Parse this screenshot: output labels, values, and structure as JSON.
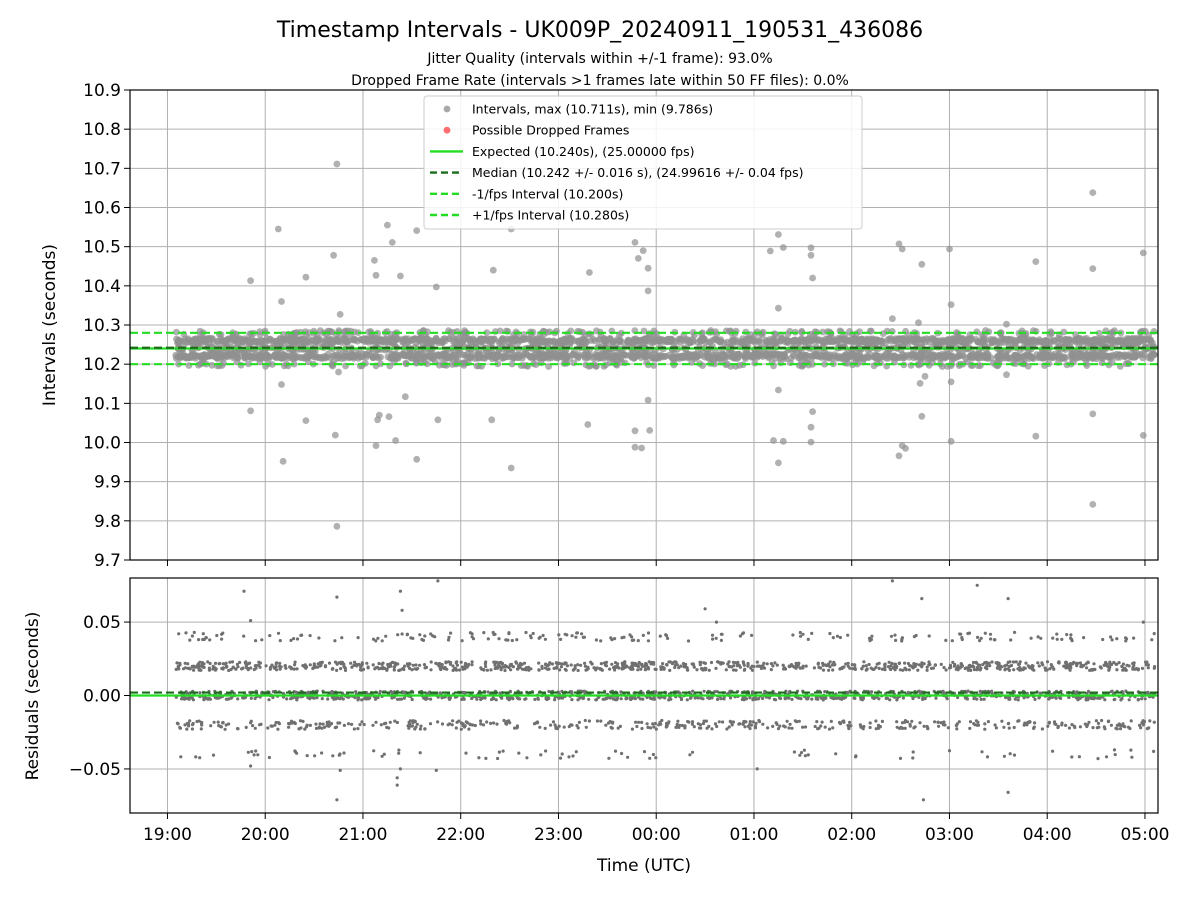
{
  "title": "Timestamp Intervals - UK009P_20240911_190531_436086",
  "subtitle_1": "Jitter Quality (intervals within +/-1 frame): 93.0%",
  "subtitle_2": "Dropped Frame Rate (intervals >1 frames late within 50 FF files): 0.0%",
  "chart_data": [
    {
      "type": "scatter",
      "panel": "intervals",
      "ylabel": "Intervals (seconds)",
      "xlabel": "",
      "ylim": [
        9.7,
        10.9
      ],
      "yticks": [
        "10.9",
        "10.8",
        "10.7",
        "10.6",
        "10.5",
        "10.4",
        "10.3",
        "10.2",
        "10.1",
        "10.0",
        "9.9",
        "9.8",
        "9.7"
      ],
      "grid": true,
      "legend_placement": "top-center",
      "legend": [
        {
          "label": "Intervals, max (10.711s), min (9.786s)",
          "marker": "dot",
          "color": "#a0a0a0"
        },
        {
          "label": "Possible Dropped Frames",
          "marker": "dot",
          "color": "#ff6666"
        },
        {
          "label": "Expected (10.240s), (25.00000 fps)",
          "marker": "solid",
          "color": "#22dd22"
        },
        {
          "label": "Median (10.242 +/- 0.016 s), (24.99616 +/- 0.04 fps)",
          "marker": "dashed",
          "color": "#1a6e1a"
        },
        {
          "label": "-1/fps Interval (10.200s)",
          "marker": "dashed",
          "color": "#22dd22"
        },
        {
          "label": "+1/fps Interval (10.280s)",
          "marker": "dashed",
          "color": "#22dd22"
        }
      ],
      "reference_lines": [
        {
          "name": "expected",
          "y": 10.24,
          "style": "solid",
          "color": "#22dd22"
        },
        {
          "name": "median",
          "y": 10.242,
          "style": "dashed",
          "color": "#1a6e1a"
        },
        {
          "name": "minus_one_frame",
          "y": 10.2,
          "style": "dashed",
          "color": "#22dd22"
        },
        {
          "name": "plus_one_frame",
          "y": 10.28,
          "style": "dashed",
          "color": "#22dd22"
        }
      ],
      "series": [
        {
          "name": "Intervals",
          "color": "#909090",
          "note": "dense band of points between 10.20 and 10.28 from 19:05 to 05:06, plus outliers listed below",
          "outliers": [
            [
              "19:51",
              10.413
            ],
            [
              "19:51",
              10.081
            ],
            [
              "20:08",
              10.545
            ],
            [
              "20:10",
              10.36
            ],
            [
              "20:10",
              10.148
            ],
            [
              "20:11",
              9.952
            ],
            [
              "20:25",
              10.422
            ],
            [
              "20:25",
              10.056
            ],
            [
              "20:42",
              10.478
            ],
            [
              "20:43",
              10.019
            ],
            [
              "20:44",
              10.711
            ],
            [
              "20:44",
              9.786
            ],
            [
              "20:46",
              10.327
            ],
            [
              "20:45",
              10.18
            ],
            [
              "21:07",
              10.465
            ],
            [
              "21:08",
              10.427
            ],
            [
              "21:09",
              10.058
            ],
            [
              "21:10",
              10.07
            ],
            [
              "21:08",
              9.992
            ],
            [
              "21:15",
              10.555
            ],
            [
              "21:18",
              10.511
            ],
            [
              "21:16",
              10.066
            ],
            [
              "21:20",
              10.005
            ],
            [
              "21:23",
              10.425
            ],
            [
              "21:26",
              10.117
            ],
            [
              "21:33",
              10.541
            ],
            [
              "21:33",
              9.957
            ],
            [
              "21:45",
              10.397
            ],
            [
              "21:46",
              10.058
            ],
            [
              "22:20",
              10.44
            ],
            [
              "22:19",
              10.058
            ],
            [
              "22:31",
              10.545
            ],
            [
              "22:31",
              9.935
            ],
            [
              "23:19",
              10.434
            ],
            [
              "23:18",
              10.046
            ],
            [
              "23:47",
              10.511
            ],
            [
              "23:49",
              10.47
            ],
            [
              "23:52",
              10.49
            ],
            [
              "23:55",
              10.445
            ],
            [
              "23:55",
              10.387
            ],
            [
              "23:55",
              10.108
            ],
            [
              "23:56",
              10.031
            ],
            [
              "23:47",
              10.03
            ],
            [
              "23:47",
              9.988
            ],
            [
              "23:51",
              9.986
            ],
            [
              "01:10",
              10.489
            ],
            [
              "01:15",
              10.531
            ],
            [
              "01:18",
              10.498
            ],
            [
              "01:12",
              10.005
            ],
            [
              "01:15",
              10.343
            ],
            [
              "01:15",
              10.134
            ],
            [
              "01:15",
              9.948
            ],
            [
              "01:18",
              10.003
            ],
            [
              "01:35",
              10.497
            ],
            [
              "01:35",
              10.478
            ],
            [
              "01:36",
              10.42
            ],
            [
              "01:36",
              10.079
            ],
            [
              "01:35",
              10.039
            ],
            [
              "01:35",
              10.001
            ],
            [
              "02:25",
              10.316
            ],
            [
              "02:29",
              10.507
            ],
            [
              "02:31",
              10.494
            ],
            [
              "02:29",
              9.966
            ],
            [
              "02:31",
              9.992
            ],
            [
              "02:33",
              9.985
            ],
            [
              "02:43",
              10.455
            ],
            [
              "02:41",
              10.306
            ],
            [
              "02:42",
              10.151
            ],
            [
              "02:45",
              10.169
            ],
            [
              "02:43",
              10.067
            ],
            [
              "03:00",
              10.494
            ],
            [
              "03:01",
              10.352
            ],
            [
              "03:01",
              10.155
            ],
            [
              "03:01",
              10.003
            ],
            [
              "03:35",
              10.302
            ],
            [
              "03:35",
              10.173
            ],
            [
              "03:53",
              10.462
            ],
            [
              "03:53",
              10.016
            ],
            [
              "04:28",
              10.638
            ],
            [
              "04:28",
              10.444
            ],
            [
              "04:28",
              10.073
            ],
            [
              "04:28",
              9.842
            ],
            [
              "04:59",
              10.484
            ],
            [
              "04:59",
              10.018
            ]
          ]
        }
      ]
    },
    {
      "type": "scatter",
      "panel": "residuals",
      "ylabel": "Residuals (seconds)",
      "xlabel": "Time (UTC)",
      "ylim": [
        -0.08,
        0.08
      ],
      "yticks": [
        "0.05",
        "0.00",
        "−0.05"
      ],
      "x_range": [
        "18:37",
        "05:08"
      ],
      "xticks": [
        "19:00",
        "20:00",
        "21:00",
        "22:00",
        "23:00",
        "00:00",
        "01:00",
        "02:00",
        "03:00",
        "04:00",
        "05:00"
      ],
      "grid": true,
      "reference_lines": [
        {
          "name": "zero",
          "y": 0.0,
          "style": "solid",
          "color": "#22dd22"
        },
        {
          "name": "median_offset",
          "y": 0.002,
          "style": "dashed",
          "color": "#1a6e1a"
        }
      ],
      "series": [
        {
          "name": "Residuals",
          "color": "#707070",
          "note": "points clustered in bands near -0.02, 0.00, +0.02 and +0.04 seconds, with sparse outliers",
          "outliers": [
            [
              "19:47",
              0.071
            ],
            [
              "19:51",
              0.051
            ],
            [
              "19:51",
              -0.048
            ],
            [
              "20:44",
              0.067
            ],
            [
              "20:46",
              -0.051
            ],
            [
              "20:44",
              -0.071
            ],
            [
              "21:23",
              0.071
            ],
            [
              "21:24",
              0.058
            ],
            [
              "21:23",
              -0.05
            ],
            [
              "21:21",
              -0.056
            ],
            [
              "21:21",
              -0.061
            ],
            [
              "21:46",
              0.078
            ],
            [
              "21:45",
              -0.051
            ],
            [
              "01:02",
              -0.05
            ],
            [
              "00:30",
              0.059
            ],
            [
              "00:37",
              0.05
            ],
            [
              "02:25",
              0.078
            ],
            [
              "02:43",
              0.066
            ],
            [
              "02:44",
              -0.071
            ],
            [
              "03:17",
              0.075
            ],
            [
              "03:36",
              0.066
            ],
            [
              "03:36",
              -0.066
            ],
            [
              "04:59",
              0.05
            ],
            [
              "04:52",
              -0.042
            ]
          ]
        }
      ]
    }
  ]
}
